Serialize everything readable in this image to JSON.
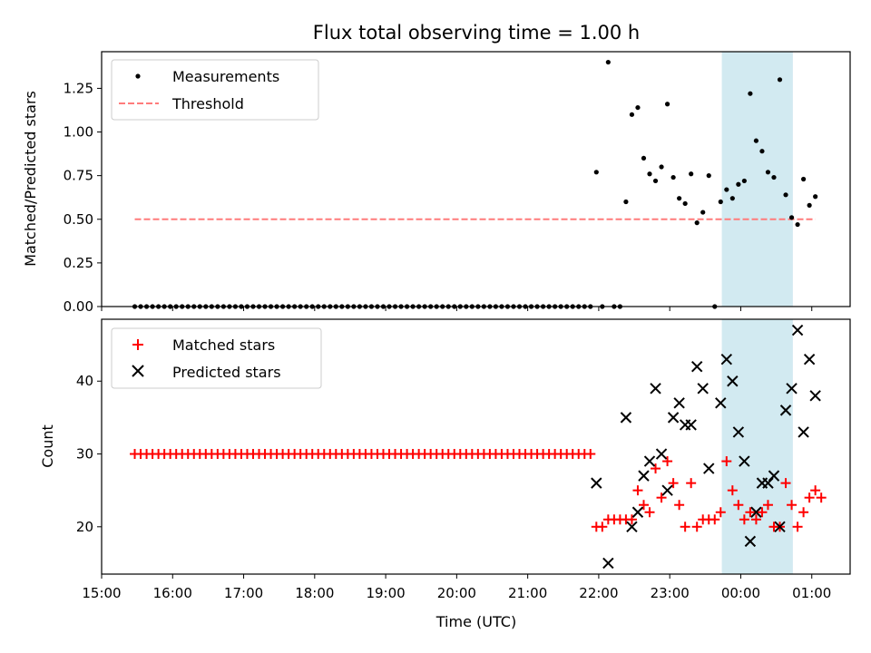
{
  "chart_data": {
    "title": "Flux total observing time = 1.00 h",
    "xlabel": "Time (UTC)",
    "x_ticks": [
      "15:00",
      "16:00",
      "17:00",
      "18:00",
      "19:00",
      "20:00",
      "21:00",
      "22:00",
      "23:00",
      "00:00",
      "01:00"
    ],
    "x_range_hours": [
      15.0,
      25.54
    ],
    "highlight_span": {
      "start": "23:44",
      "end": "00:44",
      "color": "#add8e6"
    },
    "panels": [
      {
        "type": "scatter",
        "ylabel": "Matched/Predicted stars",
        "ylim": [
          0,
          1.46
        ],
        "yticks": [
          "0.00",
          "0.25",
          "0.50",
          "0.75",
          "1.00",
          "1.25"
        ],
        "legend_position": "upper-left",
        "series": [
          {
            "name": "Measurements",
            "marker": "dot",
            "color": "#000000",
            "zero_run": {
              "start": "15:28",
              "end": "21:53",
              "step_minutes": 5,
              "value": 0
            },
            "points": [
              [
                "21:58",
                0.77
              ],
              [
                "22:03",
                0.0
              ],
              [
                "22:08",
                1.4
              ],
              [
                "22:13",
                0.0
              ],
              [
                "22:18",
                0.0
              ],
              [
                "22:23",
                0.6
              ],
              [
                "22:28",
                1.1
              ],
              [
                "22:33",
                1.14
              ],
              [
                "22:38",
                0.85
              ],
              [
                "22:43",
                0.76
              ],
              [
                "22:48",
                0.72
              ],
              [
                "22:53",
                0.8
              ],
              [
                "22:58",
                1.16
              ],
              [
                "23:03",
                0.74
              ],
              [
                "23:08",
                0.62
              ],
              [
                "23:13",
                0.59
              ],
              [
                "23:18",
                0.76
              ],
              [
                "23:23",
                0.48
              ],
              [
                "23:28",
                0.54
              ],
              [
                "23:33",
                0.75
              ],
              [
                "23:38",
                0.0
              ],
              [
                "23:43",
                0.6
              ],
              [
                "23:48",
                0.67
              ],
              [
                "23:53",
                0.62
              ],
              [
                "23:58",
                0.7
              ],
              [
                "00:03",
                0.72
              ],
              [
                "00:08",
                1.22
              ],
              [
                "00:13",
                0.95
              ],
              [
                "00:18",
                0.89
              ],
              [
                "00:23",
                0.77
              ],
              [
                "00:28",
                0.74
              ],
              [
                "00:33",
                1.3
              ],
              [
                "00:38",
                0.64
              ],
              [
                "00:43",
                0.51
              ],
              [
                "00:48",
                0.47
              ],
              [
                "00:53",
                0.73
              ],
              [
                "00:58",
                0.58
              ],
              [
                "01:03",
                0.63
              ]
            ]
          },
          {
            "name": "Threshold",
            "marker": "dashed-line",
            "color": "#ff7b7b",
            "value": 0.5,
            "x_start": "15:28",
            "x_end": "01:03"
          }
        ]
      },
      {
        "type": "scatter",
        "ylabel": "Count",
        "ylim": [
          13.5,
          48.5
        ],
        "yticks": [
          "20",
          "30",
          "40"
        ],
        "legend_position": "upper-left",
        "series": [
          {
            "name": "Matched stars",
            "marker": "plus",
            "color": "#ff0000",
            "constant_run": {
              "start": "15:28",
              "end": "21:53",
              "step_minutes": 5,
              "value": 30
            },
            "points": [
              [
                "21:58",
                20
              ],
              [
                "22:03",
                20
              ],
              [
                "22:08",
                21
              ],
              [
                "22:13",
                21
              ],
              [
                "22:18",
                21
              ],
              [
                "22:23",
                21
              ],
              [
                "22:28",
                21
              ],
              [
                "22:33",
                25
              ],
              [
                "22:38",
                23
              ],
              [
                "22:43",
                22
              ],
              [
                "22:48",
                28
              ],
              [
                "22:53",
                24
              ],
              [
                "22:58",
                29
              ],
              [
                "23:03",
                26
              ],
              [
                "23:08",
                23
              ],
              [
                "23:13",
                20
              ],
              [
                "23:18",
                26
              ],
              [
                "23:23",
                20
              ],
              [
                "23:28",
                21
              ],
              [
                "23:33",
                21
              ],
              [
                "23:38",
                21
              ],
              [
                "23:43",
                22
              ],
              [
                "23:48",
                29
              ],
              [
                "23:53",
                25
              ],
              [
                "23:58",
                23
              ],
              [
                "00:03",
                21
              ],
              [
                "00:08",
                22
              ],
              [
                "00:13",
                21
              ],
              [
                "00:18",
                22
              ],
              [
                "00:23",
                23
              ],
              [
                "00:28",
                20
              ],
              [
                "00:33",
                20
              ],
              [
                "00:38",
                26
              ],
              [
                "00:43",
                23
              ],
              [
                "00:48",
                20
              ],
              [
                "00:53",
                22
              ],
              [
                "00:58",
                24
              ],
              [
                "01:03",
                25
              ],
              [
                "01:08",
                24
              ]
            ]
          },
          {
            "name": "Predicted stars",
            "marker": "x",
            "color": "#000000",
            "points": [
              [
                "21:58",
                26
              ],
              [
                "22:08",
                15
              ],
              [
                "22:23",
                35
              ],
              [
                "22:28",
                20
              ],
              [
                "22:33",
                22
              ],
              [
                "22:38",
                27
              ],
              [
                "22:43",
                29
              ],
              [
                "22:48",
                39
              ],
              [
                "22:53",
                30
              ],
              [
                "22:58",
                25
              ],
              [
                "23:03",
                35
              ],
              [
                "23:08",
                37
              ],
              [
                "23:13",
                34
              ],
              [
                "23:18",
                34
              ],
              [
                "23:23",
                42
              ],
              [
                "23:28",
                39
              ],
              [
                "23:33",
                28
              ],
              [
                "23:43",
                37
              ],
              [
                "23:48",
                43
              ],
              [
                "23:53",
                40
              ],
              [
                "23:58",
                33
              ],
              [
                "00:03",
                29
              ],
              [
                "00:08",
                18
              ],
              [
                "00:13",
                22
              ],
              [
                "00:18",
                26
              ],
              [
                "00:23",
                26
              ],
              [
                "00:28",
                27
              ],
              [
                "00:33",
                20
              ],
              [
                "00:38",
                36
              ],
              [
                "00:43",
                39
              ],
              [
                "00:48",
                47
              ],
              [
                "00:53",
                33
              ],
              [
                "00:58",
                43
              ],
              [
                "01:03",
                38
              ]
            ]
          }
        ]
      }
    ]
  }
}
